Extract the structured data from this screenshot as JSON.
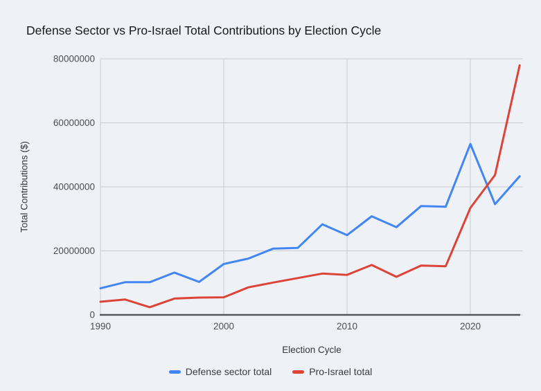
{
  "chart_data": {
    "type": "line",
    "title": "Defense Sector vs Pro-Israel Total Contributions by Election Cycle",
    "xlabel": "Election Cycle",
    "ylabel": "Total Contributions ($)",
    "x": [
      1990,
      1992,
      1994,
      1996,
      1998,
      2000,
      2002,
      2004,
      2006,
      2008,
      2010,
      2012,
      2014,
      2016,
      2018,
      2020,
      2022,
      2024
    ],
    "series": [
      {
        "name": "Defense sector total",
        "color": "#4285f4",
        "values": [
          8300000,
          10200000,
          10200000,
          13200000,
          10300000,
          15900000,
          17600000,
          20700000,
          20900000,
          28300000,
          24900000,
          30800000,
          27400000,
          34000000,
          33800000,
          53400000,
          34600000,
          43300000
        ]
      },
      {
        "name": "Pro-Israel total",
        "color": "#db4437",
        "values": [
          4100000,
          4800000,
          2400000,
          5100000,
          5400000,
          5500000,
          8600000,
          10100000,
          11500000,
          12900000,
          12500000,
          15600000,
          11900000,
          15400000,
          15200000,
          33400000,
          43700000,
          78000000
        ]
      }
    ],
    "xlim": [
      1990,
      2024
    ],
    "ylim": [
      0,
      80000000
    ],
    "x_ticks": [
      1990,
      2000,
      2010,
      2020
    ],
    "y_ticks": [
      0,
      20000000,
      40000000,
      60000000,
      80000000
    ],
    "grid": true,
    "legend_position": "bottom",
    "colors": {
      "background": "#eef1f6",
      "grid": "#c8ccd2",
      "axis_line": "#55575b",
      "tick_text": "#4b4d51"
    }
  }
}
